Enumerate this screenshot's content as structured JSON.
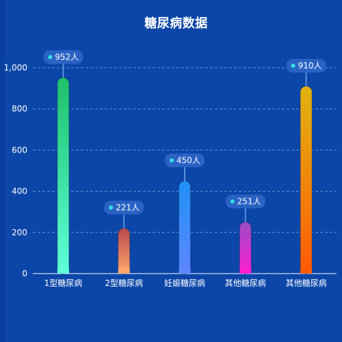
{
  "chart_data": {
    "type": "bar",
    "title": "糖尿病数据",
    "xlabel": "",
    "ylabel": "",
    "categories": [
      "1型糖尿病",
      "2型糖尿病",
      "妊娠糖尿病",
      "其他糖尿病",
      "其他糖尿病"
    ],
    "values": [
      952,
      221,
      450,
      251,
      910
    ],
    "value_labels": [
      "952人",
      "221人",
      "450人",
      "251人",
      "910人"
    ],
    "y_ticks": [
      "0",
      "200",
      "400",
      "600",
      "800",
      "1,000"
    ],
    "y_tick_values": [
      0,
      200,
      400,
      600,
      800,
      1000
    ],
    "ylim": [
      0,
      1000
    ],
    "grid": true,
    "legend": "none",
    "colors": {
      "background": "#0b46a8",
      "grid": "#6f8fd0",
      "axis": "#ffffff",
      "bubble": "#2a63c4",
      "bubble_dot": "#32e0e8",
      "leader": "#5d8fdc",
      "bar_gradients": [
        [
          "#1ec06b",
          "#5effd9"
        ],
        [
          "#b84a4d",
          "#ffa66b"
        ],
        [
          "#1f90f6",
          "#5e87ff"
        ],
        [
          "#9a4cc6",
          "#ff1fd0"
        ],
        [
          "#e0b411",
          "#ff5a06"
        ]
      ]
    }
  }
}
